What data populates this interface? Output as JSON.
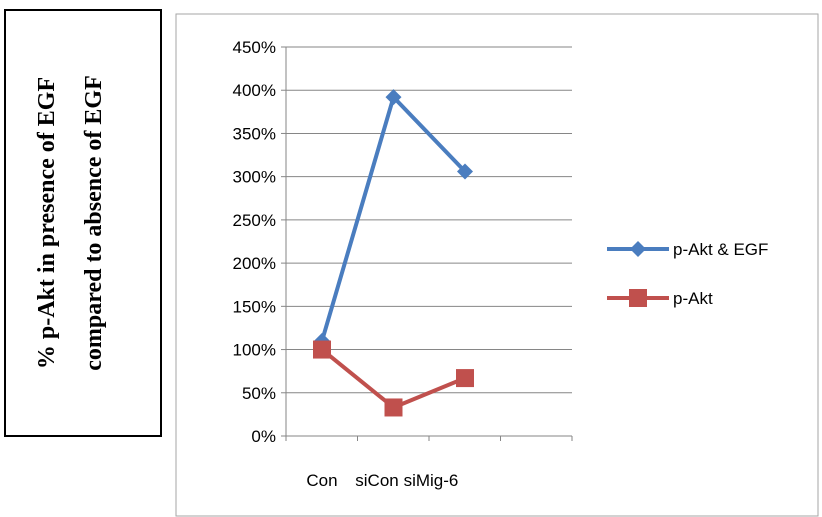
{
  "chart_data": {
    "type": "line",
    "ylabel_lines": [
      "% p-Akt in presence of EGF",
      "compared to absence of EGF"
    ],
    "categories": [
      "Con",
      "siCon",
      "siMig-6"
    ],
    "yticks": [
      "0%",
      "50%",
      "100%",
      "150%",
      "200%",
      "250%",
      "300%",
      "350%",
      "400%",
      "450%"
    ],
    "ylim": [
      0,
      450
    ],
    "grid": true,
    "legend_position": "right",
    "series": [
      {
        "name": "p-Akt & EGF",
        "values": [
          110,
          392,
          306
        ],
        "color": "#4a7dbf",
        "marker": "diamond"
      },
      {
        "name": "p-Akt",
        "values": [
          100,
          33,
          67
        ],
        "color": "#c0504d",
        "marker": "square"
      }
    ]
  }
}
